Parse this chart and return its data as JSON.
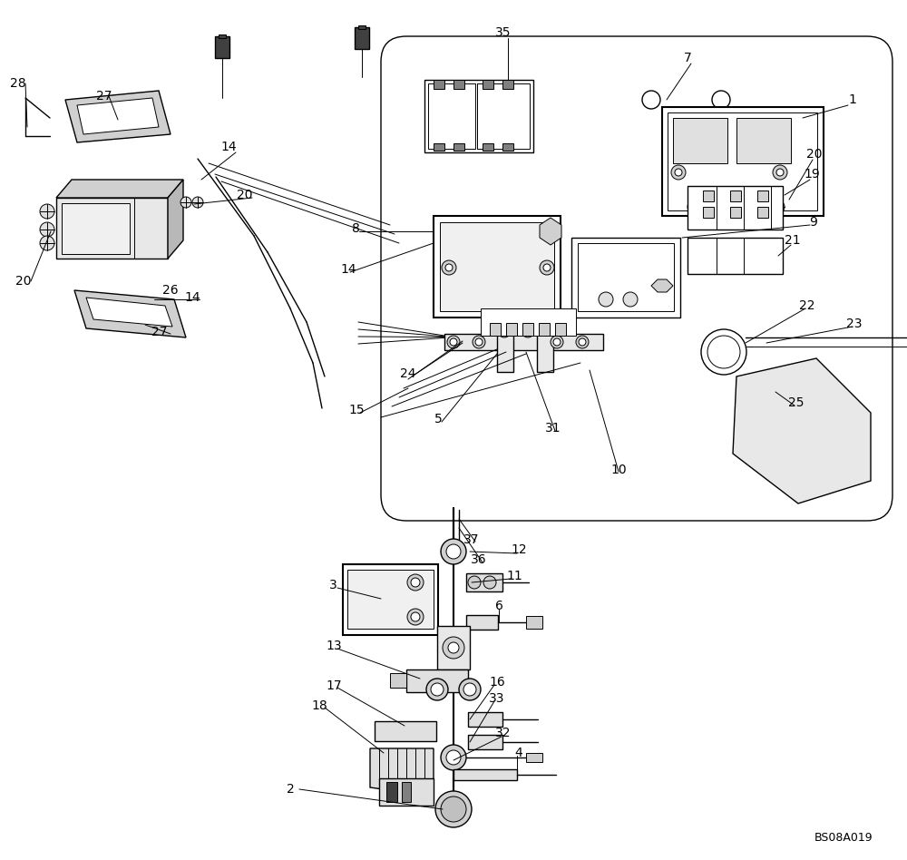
{
  "bg_color": "#ffffff",
  "line_color": "#000000",
  "fig_width": 10.0,
  "fig_height": 9.48,
  "footnote": "BS08A019"
}
